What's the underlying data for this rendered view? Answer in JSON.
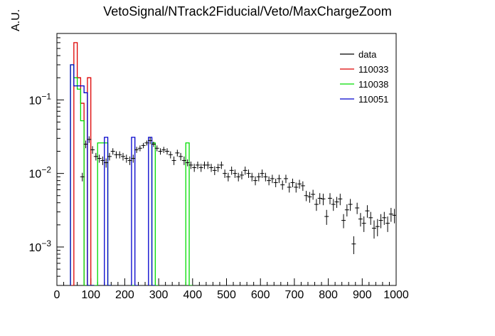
{
  "chart_data": {
    "type": "histogram",
    "title": "VetoSignal/NTrack2Fiducial/Veto/MaxChargeZoom",
    "xlabel": "",
    "ylabel": "A.U.",
    "xlim": [
      0,
      1000
    ],
    "ylim": [
      0.0003,
      0.8
    ],
    "yscale": "log",
    "x_ticks": [
      "0",
      "100",
      "200",
      "300",
      "400",
      "500",
      "600",
      "700",
      "800",
      "900",
      "1000"
    ],
    "y_ticks": [
      {
        "value": 0.1,
        "label": "10^-1"
      },
      {
        "value": 0.01,
        "label": "10^-2"
      },
      {
        "value": 0.001,
        "label": "10^-3"
      }
    ],
    "legend": {
      "placement": "top-right",
      "entries": [
        {
          "name": "data",
          "color": "#000000"
        },
        {
          "name": "110033",
          "color": "#dd0000"
        },
        {
          "name": "110038",
          "color": "#00dd00"
        },
        {
          "name": "110051",
          "color": "#0000cc"
        }
      ]
    },
    "series": [
      {
        "name": "data",
        "style": "errorbars",
        "color": "#000000",
        "points": [
          [
            75,
            0.009,
            0.0012
          ],
          [
            85,
            0.025,
            0.003
          ],
          [
            95,
            0.029,
            0.003
          ],
          [
            105,
            0.021,
            0.0025
          ],
          [
            115,
            0.017,
            0.002
          ],
          [
            125,
            0.016,
            0.002
          ],
          [
            135,
            0.015,
            0.002
          ],
          [
            145,
            0.014,
            0.002
          ],
          [
            155,
            0.017,
            0.002
          ],
          [
            165,
            0.02,
            0.002
          ],
          [
            175,
            0.018,
            0.002
          ],
          [
            185,
            0.018,
            0.002
          ],
          [
            195,
            0.017,
            0.002
          ],
          [
            205,
            0.016,
            0.002
          ],
          [
            215,
            0.015,
            0.002
          ],
          [
            225,
            0.016,
            0.002
          ],
          [
            235,
            0.021,
            0.002
          ],
          [
            245,
            0.022,
            0.002
          ],
          [
            255,
            0.024,
            0.002
          ],
          [
            265,
            0.026,
            0.002
          ],
          [
            275,
            0.028,
            0.003
          ],
          [
            285,
            0.025,
            0.002
          ],
          [
            295,
            0.022,
            0.002
          ],
          [
            305,
            0.02,
            0.002
          ],
          [
            315,
            0.021,
            0.002
          ],
          [
            325,
            0.02,
            0.002
          ],
          [
            335,
            0.018,
            0.002
          ],
          [
            345,
            0.015,
            0.002
          ],
          [
            355,
            0.019,
            0.002
          ],
          [
            365,
            0.017,
            0.002
          ],
          [
            375,
            0.015,
            0.002
          ],
          [
            385,
            0.014,
            0.0015
          ],
          [
            395,
            0.013,
            0.0015
          ],
          [
            405,
            0.012,
            0.0015
          ],
          [
            415,
            0.013,
            0.0015
          ],
          [
            425,
            0.012,
            0.0015
          ],
          [
            435,
            0.013,
            0.0015
          ],
          [
            445,
            0.013,
            0.0015
          ],
          [
            455,
            0.012,
            0.0015
          ],
          [
            465,
            0.011,
            0.0015
          ],
          [
            475,
            0.012,
            0.0015
          ],
          [
            485,
            0.013,
            0.0015
          ],
          [
            495,
            0.01,
            0.0013
          ],
          [
            505,
            0.009,
            0.0012
          ],
          [
            515,
            0.011,
            0.0014
          ],
          [
            525,
            0.01,
            0.0013
          ],
          [
            535,
            0.009,
            0.0012
          ],
          [
            545,
            0.0095,
            0.0012
          ],
          [
            555,
            0.011,
            0.0014
          ],
          [
            565,
            0.01,
            0.0013
          ],
          [
            575,
            0.009,
            0.0012
          ],
          [
            585,
            0.008,
            0.0011
          ],
          [
            595,
            0.009,
            0.0012
          ],
          [
            605,
            0.01,
            0.0013
          ],
          [
            615,
            0.009,
            0.0012
          ],
          [
            625,
            0.008,
            0.0011
          ],
          [
            635,
            0.0085,
            0.0011
          ],
          [
            645,
            0.0075,
            0.001
          ],
          [
            655,
            0.0085,
            0.0011
          ],
          [
            665,
            0.007,
            0.001
          ],
          [
            675,
            0.0085,
            0.0011
          ],
          [
            685,
            0.0065,
            0.001
          ],
          [
            695,
            0.0075,
            0.001
          ],
          [
            705,
            0.0065,
            0.001
          ],
          [
            715,
            0.0072,
            0.001
          ],
          [
            725,
            0.0068,
            0.001
          ],
          [
            735,
            0.005,
            0.0008
          ],
          [
            745,
            0.0048,
            0.0008
          ],
          [
            755,
            0.0052,
            0.0008
          ],
          [
            765,
            0.0038,
            0.0007
          ],
          [
            775,
            0.0046,
            0.0008
          ],
          [
            785,
            0.0045,
            0.0008
          ],
          [
            795,
            0.0026,
            0.0006
          ],
          [
            805,
            0.0046,
            0.0008
          ],
          [
            815,
            0.0038,
            0.0007
          ],
          [
            825,
            0.0041,
            0.0007
          ],
          [
            835,
            0.0045,
            0.0008
          ],
          [
            845,
            0.0023,
            0.0005
          ],
          [
            855,
            0.0032,
            0.0006
          ],
          [
            865,
            0.0038,
            0.0007
          ],
          [
            875,
            0.0011,
            0.0003
          ],
          [
            885,
            0.0034,
            0.0006
          ],
          [
            895,
            0.0024,
            0.0005
          ],
          [
            905,
            0.0021,
            0.0005
          ],
          [
            915,
            0.0031,
            0.0006
          ],
          [
            925,
            0.0025,
            0.0005
          ],
          [
            935,
            0.0018,
            0.0005
          ],
          [
            945,
            0.0019,
            0.0005
          ],
          [
            955,
            0.0023,
            0.0005
          ],
          [
            965,
            0.0025,
            0.0005
          ],
          [
            975,
            0.0021,
            0.0005
          ],
          [
            985,
            0.0028,
            0.0006
          ],
          [
            995,
            0.0027,
            0.0006
          ]
        ]
      },
      {
        "name": "110033",
        "style": "step",
        "color": "#dd0000",
        "bins": [
          [
            40,
            50,
            0.0003
          ],
          [
            50,
            60,
            0.6
          ],
          [
            60,
            70,
            0.2
          ],
          [
            70,
            80,
            0.09
          ],
          [
            80,
            90,
            0.0003
          ],
          [
            90,
            100,
            0.2
          ],
          [
            100,
            110,
            0.0003
          ]
        ]
      },
      {
        "name": "110038",
        "style": "step",
        "color": "#00dd00",
        "bins": [
          [
            40,
            50,
            0.3
          ],
          [
            50,
            60,
            0.2
          ],
          [
            60,
            70,
            0.14
          ],
          [
            70,
            80,
            0.052
          ],
          [
            80,
            90,
            0.0003
          ],
          [
            90,
            100,
            0.0003
          ],
          [
            100,
            110,
            0.0003
          ],
          [
            110,
            120,
            0.0003
          ],
          [
            120,
            130,
            0.026
          ],
          [
            130,
            140,
            0.026
          ],
          [
            140,
            150,
            0.026
          ],
          [
            150,
            160,
            0.0003
          ],
          [
            220,
            230,
            0.0003
          ],
          [
            280,
            290,
            0.026
          ],
          [
            290,
            300,
            0.0003
          ],
          [
            380,
            390,
            0.026
          ],
          [
            390,
            400,
            0.0003
          ]
        ]
      },
      {
        "name": "110051",
        "style": "step",
        "color": "#0000cc",
        "bins": [
          [
            40,
            50,
            0.3
          ],
          [
            50,
            60,
            0.155
          ],
          [
            60,
            70,
            0.155
          ],
          [
            70,
            80,
            0.155
          ],
          [
            80,
            90,
            0.125
          ],
          [
            90,
            100,
            0.0003
          ],
          [
            100,
            110,
            0.0003
          ],
          [
            140,
            150,
            0.031
          ],
          [
            150,
            160,
            0.0003
          ],
          [
            220,
            230,
            0.031
          ],
          [
            230,
            240,
            0.0003
          ],
          [
            270,
            280,
            0.031
          ],
          [
            280,
            290,
            0.0003
          ]
        ]
      }
    ]
  }
}
